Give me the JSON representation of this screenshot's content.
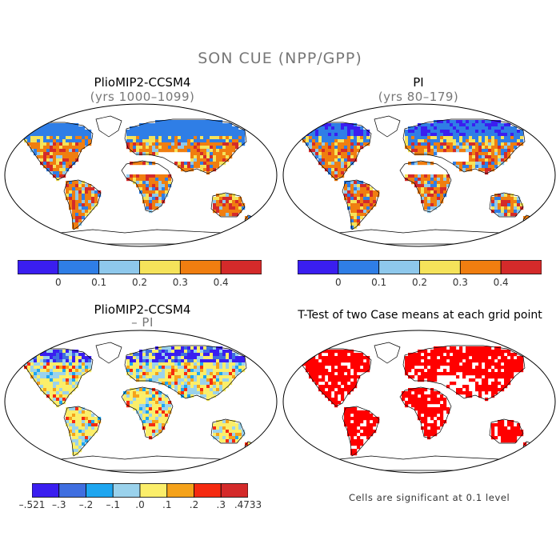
{
  "figure": {
    "title": "SON CUE (NPP/GPP)"
  },
  "panels": [
    {
      "id": "top-left",
      "title": "PlioMIP2-CCSM4",
      "subtitle": "(yrs 1000–1099)"
    },
    {
      "id": "top-right",
      "title": "PI",
      "subtitle": "(yrs 80–179)"
    },
    {
      "id": "bottom-left",
      "title": "PlioMIP2-CCSM4",
      "subtitle": "– PI"
    },
    {
      "id": "bottom-right",
      "title": "T-Test of two Case means at each grid point",
      "subtitle": ""
    }
  ],
  "colorbar_top": {
    "colors": [
      "#3a1ef0",
      "#2f7ee6",
      "#8ec8ec",
      "#f5e35a",
      "#f07e10",
      "#d42a2a"
    ],
    "ticks": [
      "0",
      "0.1",
      "0.2",
      "0.3",
      "0.4"
    ]
  },
  "colorbar_bottom": {
    "colors": [
      "#3a1ef0",
      "#3f6ee0",
      "#1ea6f0",
      "#9ad2ec",
      "#fbee6a",
      "#f5a21a",
      "#f52a10",
      "#d42a2a"
    ],
    "ticks": [
      "–.521",
      "–.3",
      "–.2",
      "–.1",
      ".0",
      ".1",
      ".2",
      ".3",
      ".4733"
    ]
  },
  "ttest_note": "Cells are significant at 0.1 level",
  "map_colors": {
    "ocean": "#ffffff",
    "outline": "#000000",
    "ttest_sig": "#ff0000"
  }
}
